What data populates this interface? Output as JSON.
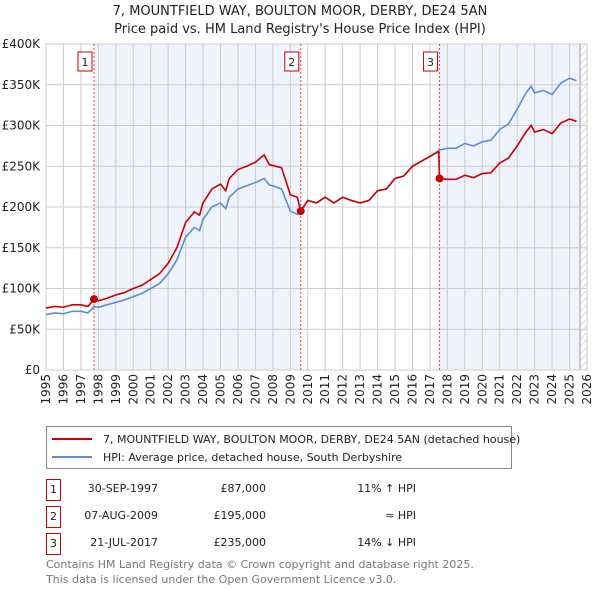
{
  "chart_data": {
    "type": "line",
    "title": "7, MOUNTFIELD WAY, BOULTON MOOR, DERBY, DE24 5AN",
    "subtitle": "Price paid vs. HM Land Registry's House Price Index (HPI)",
    "xlim": [
      1995,
      2026
    ],
    "ylim": [
      0,
      400000
    ],
    "x_ticks": [
      "1995",
      "1996",
      "1997",
      "1998",
      "1999",
      "2000",
      "2001",
      "2002",
      "2003",
      "2004",
      "2005",
      "2006",
      "2007",
      "2008",
      "2009",
      "2010",
      "2011",
      "2012",
      "2013",
      "2014",
      "2015",
      "2016",
      "2017",
      "2018",
      "2019",
      "2020",
      "2021",
      "2022",
      "2023",
      "2024",
      "2025",
      "2026"
    ],
    "y_ticks": [
      {
        "v": 0,
        "label": "£0"
      },
      {
        "v": 50000,
        "label": "£50K"
      },
      {
        "v": 100000,
        "label": "£100K"
      },
      {
        "v": 150000,
        "label": "£150K"
      },
      {
        "v": 200000,
        "label": "£200K"
      },
      {
        "v": 250000,
        "label": "£250K"
      },
      {
        "v": 300000,
        "label": "£300K"
      },
      {
        "v": 350000,
        "label": "£350K"
      },
      {
        "v": 400000,
        "label": "£400K"
      }
    ],
    "grid": true,
    "series": [
      {
        "name": "7, MOUNTFIELD WAY, BOULTON MOOR, DERBY, DE24 5AN (detached house)",
        "color": "#cc0000",
        "points": [
          [
            1995,
            76
          ],
          [
            1995.5,
            78
          ],
          [
            1996,
            77
          ],
          [
            1996.5,
            80
          ],
          [
            1997,
            80
          ],
          [
            1997.4,
            78
          ],
          [
            1997.75,
            87
          ],
          [
            1998,
            85
          ],
          [
            1998.5,
            88
          ],
          [
            1999,
            92
          ],
          [
            1999.5,
            95
          ],
          [
            2000,
            100
          ],
          [
            2000.5,
            104
          ],
          [
            2001,
            111
          ],
          [
            2001.5,
            118
          ],
          [
            2002,
            131
          ],
          [
            2002.5,
            150
          ],
          [
            2003,
            181
          ],
          [
            2003.5,
            194
          ],
          [
            2003.8,
            190
          ],
          [
            2004,
            205
          ],
          [
            2004.5,
            222
          ],
          [
            2005,
            228
          ],
          [
            2005.3,
            220
          ],
          [
            2005.5,
            235
          ],
          [
            2006,
            246
          ],
          [
            2006.5,
            250
          ],
          [
            2007,
            255
          ],
          [
            2007.5,
            264
          ],
          [
            2007.8,
            252
          ],
          [
            2008,
            251
          ],
          [
            2008.5,
            248
          ],
          [
            2009,
            215
          ],
          [
            2009.4,
            212
          ],
          [
            2009.6,
            195
          ],
          [
            2010,
            208
          ],
          [
            2010.5,
            205
          ],
          [
            2011,
            212
          ],
          [
            2011.5,
            205
          ],
          [
            2012,
            212
          ],
          [
            2012.5,
            208
          ],
          [
            2013,
            205
          ],
          [
            2013.5,
            208
          ],
          [
            2014,
            220
          ],
          [
            2014.5,
            222
          ],
          [
            2015,
            235
          ],
          [
            2015.5,
            238
          ],
          [
            2016,
            250
          ],
          [
            2016.5,
            256
          ],
          [
            2017,
            262
          ],
          [
            2017.5,
            268
          ],
          [
            2017.55,
            235
          ],
          [
            2018,
            234
          ],
          [
            2018.5,
            234
          ],
          [
            2019,
            239
          ],
          [
            2019.5,
            236
          ],
          [
            2020,
            241
          ],
          [
            2020.5,
            242
          ],
          [
            2021,
            254
          ],
          [
            2021.5,
            260
          ],
          [
            2022,
            275
          ],
          [
            2022.5,
            292
          ],
          [
            2022.8,
            300
          ],
          [
            2023,
            292
          ],
          [
            2023.5,
            295
          ],
          [
            2024,
            290
          ],
          [
            2024.5,
            303
          ],
          [
            2025,
            308
          ],
          [
            2025.4,
            305
          ]
        ]
      },
      {
        "name": "HPI: Average price, detached house, South Derbyshire",
        "color": "#5b8fd0",
        "points": [
          [
            1995,
            68
          ],
          [
            1995.5,
            70
          ],
          [
            1996,
            69
          ],
          [
            1996.5,
            72
          ],
          [
            1997,
            72
          ],
          [
            1997.4,
            70
          ],
          [
            1997.75,
            78
          ],
          [
            1998,
            77
          ],
          [
            1998.5,
            80
          ],
          [
            1999,
            83
          ],
          [
            1999.5,
            86
          ],
          [
            2000,
            90
          ],
          [
            2000.5,
            94
          ],
          [
            2001,
            100
          ],
          [
            2001.5,
            106
          ],
          [
            2002,
            118
          ],
          [
            2002.5,
            135
          ],
          [
            2003,
            163
          ],
          [
            2003.5,
            175
          ],
          [
            2003.8,
            171
          ],
          [
            2004,
            185
          ],
          [
            2004.5,
            200
          ],
          [
            2005,
            205
          ],
          [
            2005.3,
            198
          ],
          [
            2005.5,
            212
          ],
          [
            2006,
            222
          ],
          [
            2006.5,
            226
          ],
          [
            2007,
            230
          ],
          [
            2007.5,
            235
          ],
          [
            2007.8,
            227
          ],
          [
            2008,
            226
          ],
          [
            2008.5,
            222
          ],
          [
            2009,
            195
          ],
          [
            2009.4,
            191
          ],
          [
            2009.6,
            194
          ],
          [
            2010,
            208
          ],
          [
            2010.5,
            205
          ],
          [
            2011,
            212
          ],
          [
            2011.5,
            205
          ],
          [
            2012,
            212
          ],
          [
            2012.5,
            208
          ],
          [
            2013,
            205
          ],
          [
            2013.5,
            208
          ],
          [
            2014,
            220
          ],
          [
            2014.5,
            222
          ],
          [
            2015,
            235
          ],
          [
            2015.5,
            238
          ],
          [
            2016,
            250
          ],
          [
            2016.5,
            256
          ],
          [
            2017,
            262
          ],
          [
            2017.55,
            270
          ],
          [
            2018,
            272
          ],
          [
            2018.5,
            272
          ],
          [
            2019,
            278
          ],
          [
            2019.5,
            275
          ],
          [
            2020,
            280
          ],
          [
            2020.5,
            282
          ],
          [
            2021,
            295
          ],
          [
            2021.5,
            302
          ],
          [
            2022,
            320
          ],
          [
            2022.5,
            340
          ],
          [
            2022.8,
            348
          ],
          [
            2023,
            340
          ],
          [
            2023.5,
            343
          ],
          [
            2024,
            338
          ],
          [
            2024.5,
            352
          ],
          [
            2025,
            358
          ],
          [
            2025.4,
            355
          ]
        ]
      }
    ],
    "sales": [
      {
        "label": "1",
        "x": 1997.75,
        "price": 87000
      },
      {
        "label": "2",
        "x": 2009.6,
        "price": 195000
      },
      {
        "label": "3",
        "x": 2017.55,
        "price": 235000
      }
    ],
    "shaded_ranges": [
      [
        1997.75,
        2009.6
      ],
      [
        2017.55,
        2026
      ]
    ],
    "projection_start": 2025.6,
    "legend_position": "below"
  },
  "legend": {
    "red": "7, MOUNTFIELD WAY, BOULTON MOOR, DERBY, DE24 5AN (detached house)",
    "blue": "HPI: Average price, detached house, South Derbyshire"
  },
  "transactions": [
    {
      "num": "1",
      "date": "30-SEP-1997",
      "price": "£87,000",
      "hpi": "11% ↑ HPI"
    },
    {
      "num": "2",
      "date": "07-AUG-2009",
      "price": "£195,000",
      "hpi": "≈ HPI"
    },
    {
      "num": "3",
      "date": "21-JUL-2017",
      "price": "£235,000",
      "hpi": "14% ↓ HPI"
    }
  ],
  "footer": {
    "line1": "Contains HM Land Registry data © Crown copyright and database right 2025.",
    "line2": "This data is licensed under the Open Government Licence v3.0."
  }
}
